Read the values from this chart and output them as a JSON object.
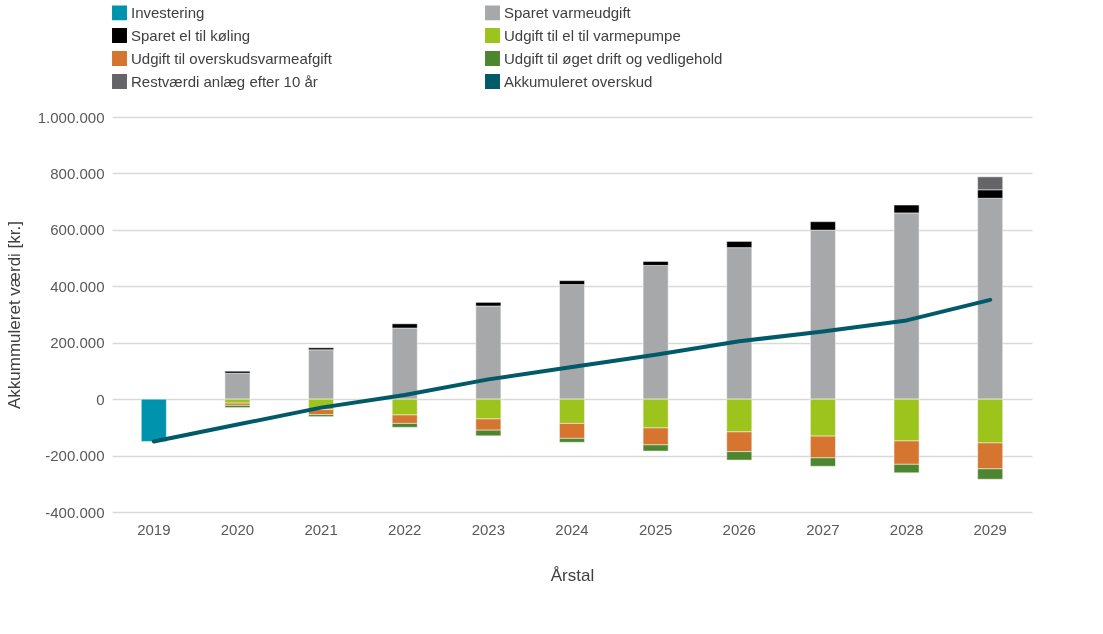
{
  "chart_data": {
    "type": "bar",
    "stacked": true,
    "xlabel": "Årstal",
    "ylabel": "Akkummuleret værdi [kr.]",
    "categories": [
      "2019",
      "2020",
      "2021",
      "2022",
      "2023",
      "2024",
      "2025",
      "2026",
      "2027",
      "2028",
      "2029"
    ],
    "series": [
      {
        "name": "Investering",
        "color": "#0093ad",
        "values": [
          -150000,
          null,
          null,
          null,
          null,
          null,
          null,
          null,
          null,
          null,
          null
        ]
      },
      {
        "name": "Sparet varmeudgift",
        "color": "#a7a8aa",
        "values": [
          null,
          92000,
          175000,
          252000,
          330000,
          406000,
          474000,
          537000,
          599000,
          660000,
          712000
        ]
      },
      {
        "name": "Sparet el til køling",
        "color": "#000000",
        "values": [
          null,
          7000,
          7000,
          15000,
          13000,
          14000,
          14000,
          22000,
          30000,
          28000,
          30000
        ]
      },
      {
        "name": "Udgift til el til varmepumpe",
        "color": "#9dc41c",
        "values": [
          null,
          -14000,
          -37000,
          -56000,
          -70000,
          -86000,
          -102000,
          -116000,
          -131000,
          -148000,
          -155000
        ]
      },
      {
        "name": "Udgift til overskudsvarmeafgift",
        "color": "#d57530",
        "values": [
          null,
          -8000,
          -18000,
          -30000,
          -40000,
          -53000,
          -60000,
          -70000,
          -77000,
          -83000,
          -92000
        ]
      },
      {
        "name": "Udgift til øget drift og vedligehold",
        "color": "#4e8630",
        "values": [
          null,
          -8000,
          -7000,
          -14000,
          -20000,
          -14000,
          -22000,
          -30000,
          -30000,
          -30000,
          -37000
        ]
      },
      {
        "name": "Restværdi anlæg efter 10 år",
        "color": "#646469",
        "values": [
          null,
          null,
          null,
          null,
          null,
          null,
          null,
          null,
          null,
          null,
          46000
        ]
      },
      {
        "name": "Akkumuleret overskud",
        "color": "#005a6a",
        "type": "line",
        "values": [
          -150000,
          -90000,
          -30000,
          15000,
          70000,
          114000,
          157000,
          205000,
          240000,
          279000,
          352000
        ]
      }
    ],
    "ylim": [
      -400000,
      1000000
    ],
    "yticks": [
      {
        "value": -400000,
        "label": "-400.000"
      },
      {
        "value": -200000,
        "label": "-200.000"
      },
      0,
      {
        "value": 200000,
        "label": "200.000"
      },
      {
        "value": 400000,
        "label": "400.000"
      },
      {
        "value": 600000,
        "label": "600.000"
      },
      {
        "value": 800000,
        "label": "800.000"
      },
      {
        "value": 1000000,
        "label": "1.000.000"
      }
    ],
    "grid": "y",
    "legend": "top"
  }
}
